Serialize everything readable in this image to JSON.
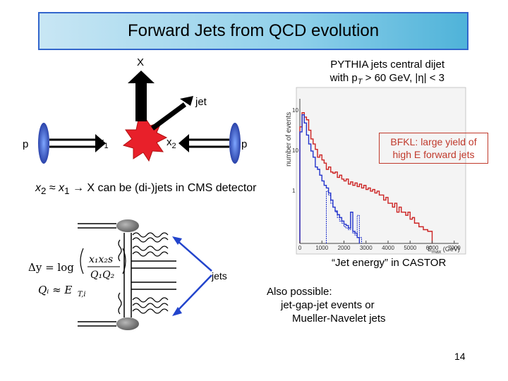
{
  "slide": {
    "title": "Forward Jets from QCD evolution",
    "page_number": "14"
  },
  "diagram": {
    "x_label": "X",
    "jet_label": "jet",
    "p_left": "p",
    "p_right": "p",
    "x1_label": "x",
    "x1_sub": "1",
    "x2_label": "x",
    "x2_sub": "2"
  },
  "pythia": {
    "line1": "PYTHIA jets central dijet",
    "line2_prefix": "with p",
    "line2_sub": "T",
    "line2_suffix": " > 60 GeV, |η| < 3"
  },
  "bfkl_note": {
    "line1": "BFKL: large yield of",
    "line2": "high E forward jets"
  },
  "process_text": {
    "x2": "x",
    "x2_sub": "2",
    "approx": " ≈ ",
    "x1": "x",
    "x1_sub": "1",
    "rest": " → X can be (di-)jets in CMS detector"
  },
  "feynman": {
    "jets_label": "jets",
    "formula_dy": "Δy = log",
    "formula_num": "x₁x₂s",
    "formula_den": "Q₁Q₂",
    "formula_q": "Qᵢ ≈ E",
    "formula_q_sub": "T,i"
  },
  "histogram": {
    "ylabel": "number of events",
    "xlabel": "E",
    "xlabel_sub": "max",
    "xlabel_unit": "(GeV)",
    "caption": "“Jet energy” in CASTOR",
    "y_tick_labels": [
      "10",
      "10",
      "1"
    ],
    "x_tick_labels": [
      "0",
      "1000",
      "2000",
      "3000",
      "4000",
      "5000",
      "6000",
      "7000"
    ]
  },
  "also": {
    "line1": "Also possible:",
    "line2": "jet-gap-jet events or",
    "line3": "Mueller-Navelet jets"
  },
  "colors": {
    "title_border": "#3366cc",
    "burst": "#e8202a",
    "red_series": "#cc2222",
    "blue_series": "#2233cc",
    "beam": "#2244cc",
    "arrow_blue": "#2244cc"
  },
  "chart_data": {
    "type": "bar",
    "ylabel": "number of events",
    "xlabel": "E max (GeV)",
    "x_ticks": [
      0,
      1000,
      2000,
      3000,
      4000,
      5000,
      6000,
      7000
    ],
    "y_scale": "log",
    "grid": false,
    "series": [
      {
        "color": "#cc2222",
        "bin_edges": [
          0,
          100,
          200,
          300,
          400,
          500,
          600,
          700,
          800,
          900,
          1000,
          1100,
          1200,
          1300,
          1400,
          1500,
          1600,
          1700,
          1800,
          1900,
          2000,
          2100,
          2200,
          2300,
          2400,
          2500,
          2600,
          2700,
          2800,
          2900,
          3000,
          3100,
          3200,
          3300,
          3400,
          3500,
          3600,
          3700,
          3800,
          3900,
          4000,
          4100,
          4200,
          4300,
          4400,
          4500,
          4600,
          4700,
          4800,
          4900,
          5000,
          5100,
          5200,
          5300,
          5400,
          5500,
          5600,
          5700,
          5800,
          5900,
          6000
        ],
        "values": [
          400,
          900,
          700,
          600,
          330,
          200,
          150,
          110,
          70,
          80,
          60,
          50,
          35,
          40,
          30,
          28,
          30,
          22,
          25,
          20,
          18,
          20,
          15,
          17,
          14,
          16,
          13,
          15,
          12,
          14,
          11,
          12,
          10,
          11,
          9,
          10,
          8,
          8,
          6,
          7,
          5,
          5,
          4,
          5,
          3,
          4,
          3,
          3,
          2.5,
          3,
          2,
          2.2,
          1.6,
          1.6,
          1.3,
          1.3,
          1.1,
          1.1,
          1.0,
          1.0
        ]
      },
      {
        "color": "#2233cc",
        "bin_edges": [
          0,
          100,
          200,
          300,
          400,
          500,
          600,
          700,
          800,
          900,
          1000,
          1100,
          1200,
          1300,
          1400,
          1500,
          1600,
          1700,
          1800,
          1900,
          2000,
          2100,
          2200,
          2300,
          2400,
          2500,
          2600,
          2700
        ],
        "values": [
          300,
          800,
          500,
          250,
          150,
          100,
          70,
          40,
          35,
          25,
          18,
          14,
          12,
          9,
          6,
          4,
          3.2,
          2.6,
          2.2,
          1.8,
          1.5,
          1.4,
          1.2,
          3,
          1.0,
          0.9,
          0.7
        ]
      },
      {
        "color": "#2233cc",
        "bin_edges": [
          1200,
          1300,
          1400,
          1500,
          1600,
          1700,
          1800,
          1900,
          2000,
          2100,
          2200,
          2300,
          2400,
          2500,
          2600,
          2700,
          2800
        ],
        "values": [
          10,
          8,
          5,
          4,
          3,
          2.2,
          1.8,
          1.6,
          1.3,
          1.2,
          1.1,
          3,
          0.9,
          0.8,
          2.5,
          0.7
        ]
      }
    ]
  }
}
